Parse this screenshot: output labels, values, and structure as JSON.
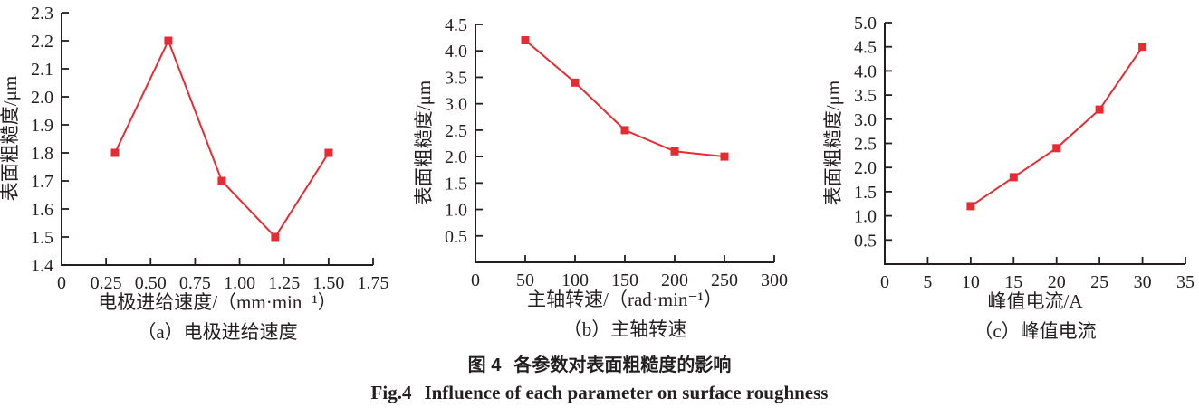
{
  "page": {
    "background": "#ffffff",
    "text_color": "#231f20"
  },
  "figure": {
    "caption_zh_label": "图 4",
    "caption_zh_text": "各参数对表面粗糙度的影响",
    "caption_en_label": "Fig.4",
    "caption_en_text": "Influence of each parameter on surface roughness"
  },
  "chart_data": [
    {
      "type": "line",
      "title": "（a）电极进给速度",
      "xlabel": "电极进给速度/（mm·min⁻¹）",
      "ylabel": "表面粗糙度/μm",
      "xlim": [
        0,
        1.75
      ],
      "ylim": [
        1.4,
        2.3
      ],
      "xtick_labels": [
        "0",
        "0.25",
        "0.50",
        "0.75",
        "1.00",
        "1.25",
        "1.50",
        "1.75"
      ],
      "ytick_labels": [
        "1.4",
        "1.5",
        "1.6",
        "1.7",
        "1.8",
        "1.9",
        "2.0",
        "2.1",
        "2.2",
        "2.3"
      ],
      "grid": false,
      "legend": "none",
      "marker": "square",
      "line_color": "#e62b33",
      "series": [
        {
          "name": "surface-roughness",
          "x": [
            0.3,
            0.6,
            0.9,
            1.2,
            1.5
          ],
          "y": [
            1.8,
            2.2,
            1.7,
            1.5,
            1.8
          ]
        }
      ]
    },
    {
      "type": "line",
      "title": "（b）主轴转速",
      "xlabel": "主轴转速/（rad·min⁻¹）",
      "ylabel": "表面粗糙度/μm",
      "xlim": [
        0,
        300
      ],
      "ylim": [
        0,
        4.5
      ],
      "xtick_labels": [
        "0",
        "50",
        "100",
        "150",
        "200",
        "250",
        "300"
      ],
      "ytick_labels": [
        "0.5",
        "1.0",
        "1.5",
        "2.0",
        "2.5",
        "3.0",
        "3.5",
        "4.0",
        "4.5"
      ],
      "grid": false,
      "legend": "none",
      "marker": "square",
      "line_color": "#e62b33",
      "series": [
        {
          "name": "surface-roughness",
          "x": [
            50,
            100,
            150,
            200,
            250
          ],
          "y": [
            4.2,
            3.4,
            2.5,
            2.1,
            2.0
          ]
        }
      ]
    },
    {
      "type": "line",
      "title": "（c）峰值电流",
      "xlabel": "峰值电流/A",
      "ylabel": "表面粗糙度/μm",
      "xlim": [
        0,
        35
      ],
      "ylim": [
        0,
        5.0
      ],
      "xtick_labels": [
        "0",
        "5",
        "10",
        "15",
        "20",
        "25",
        "30",
        "35"
      ],
      "ytick_labels": [
        "0.5",
        "1.0",
        "1.5",
        "2.0",
        "2.5",
        "3.0",
        "3.5",
        "4.0",
        "4.5",
        "5.0"
      ],
      "grid": false,
      "legend": "none",
      "marker": "square",
      "line_color": "#e62b33",
      "series": [
        {
          "name": "surface-roughness",
          "x": [
            10,
            15,
            20,
            25,
            30
          ],
          "y": [
            1.2,
            1.8,
            2.4,
            3.2,
            4.5
          ]
        }
      ]
    }
  ]
}
